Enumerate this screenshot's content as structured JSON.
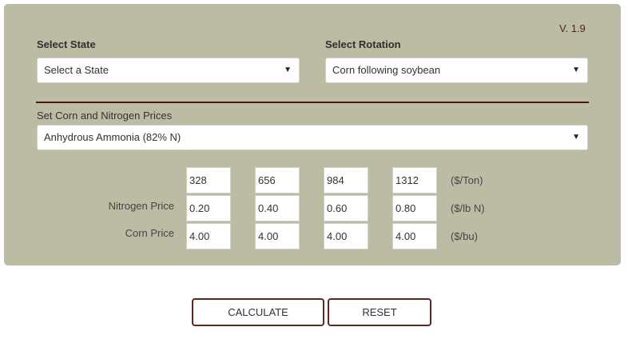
{
  "version": "V. 1.9",
  "state": {
    "label": "Select State",
    "selected": "Select a State"
  },
  "rotation": {
    "label": "Select Rotation",
    "selected": "Corn following soybean"
  },
  "prices_section": {
    "label": "Set Corn and Nitrogen Prices",
    "nitrogen_source": "Anhydrous Ammonia (82% N)"
  },
  "price_table": {
    "rows": [
      {
        "label": "",
        "values": [
          "328",
          "656",
          "984",
          "1312"
        ],
        "unit": "($/Ton)"
      },
      {
        "label": "Nitrogen Price",
        "values": [
          "0.20",
          "0.40",
          "0.60",
          "0.80"
        ],
        "unit": "($/lb N)"
      },
      {
        "label": "Corn Price",
        "values": [
          "4.00",
          "4.00",
          "4.00",
          "4.00"
        ],
        "unit": "($/bu)"
      }
    ]
  },
  "buttons": {
    "calculate": "CALCULATE",
    "reset": "RESET"
  },
  "icons": {
    "dropdown": "chevron-down-icon"
  }
}
